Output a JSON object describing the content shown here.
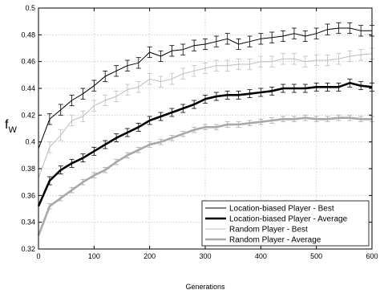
{
  "chart_data": {
    "type": "line",
    "title": "",
    "xlabel": "Generations",
    "ylabel": "f",
    "ylabel_sub": "W",
    "xlim": [
      0,
      600
    ],
    "ylim": [
      0.32,
      0.5
    ],
    "xticks": [
      0,
      100,
      200,
      300,
      400,
      500,
      600
    ],
    "yticks": [
      0.32,
      0.34,
      0.36,
      0.38,
      0.4,
      0.42,
      0.44,
      0.46,
      0.48,
      0.5
    ],
    "grid": true,
    "legend_position": "bottom-right",
    "x": [
      0,
      20,
      40,
      60,
      80,
      100,
      120,
      140,
      160,
      180,
      200,
      220,
      240,
      260,
      280,
      300,
      320,
      340,
      360,
      380,
      400,
      420,
      440,
      460,
      480,
      500,
      520,
      540,
      560,
      580,
      600
    ],
    "series": [
      {
        "name": "Location-biased Player - Best",
        "color": "#000000",
        "width": 1,
        "values": [
          0.395,
          0.417,
          0.424,
          0.431,
          0.436,
          0.442,
          0.449,
          0.453,
          0.457,
          0.459,
          0.467,
          0.464,
          0.468,
          0.469,
          0.472,
          0.473,
          0.475,
          0.477,
          0.473,
          0.475,
          0.477,
          0.478,
          0.479,
          0.481,
          0.479,
          0.481,
          0.484,
          0.485,
          0.485,
          0.483,
          0.483
        ],
        "error": 0.004
      },
      {
        "name": "Location-biased Player - Average",
        "color": "#000000",
        "width": 2.6,
        "values": [
          0.352,
          0.371,
          0.379,
          0.384,
          0.388,
          0.393,
          0.398,
          0.403,
          0.407,
          0.411,
          0.416,
          0.419,
          0.422,
          0.425,
          0.428,
          0.432,
          0.434,
          0.435,
          0.435,
          0.436,
          0.437,
          0.438,
          0.44,
          0.44,
          0.44,
          0.441,
          0.441,
          0.441,
          0.444,
          0.442,
          0.441
        ],
        "error": 0.003
      },
      {
        "name": "Random Player - Best",
        "color": "#bcbcbc",
        "width": 1,
        "values": [
          0.373,
          0.396,
          0.405,
          0.416,
          0.419,
          0.427,
          0.431,
          0.434,
          0.439,
          0.441,
          0.447,
          0.445,
          0.447,
          0.451,
          0.453,
          0.455,
          0.457,
          0.457,
          0.458,
          0.458,
          0.46,
          0.46,
          0.462,
          0.462,
          0.46,
          0.461,
          0.461,
          0.462,
          0.464,
          0.465,
          0.466
        ],
        "error": 0.004
      },
      {
        "name": "Random Player - Average",
        "color": "#a8a8a8",
        "width": 2.6,
        "values": [
          0.33,
          0.352,
          0.358,
          0.364,
          0.37,
          0.375,
          0.379,
          0.385,
          0.39,
          0.394,
          0.398,
          0.4,
          0.403,
          0.406,
          0.409,
          0.411,
          0.411,
          0.413,
          0.413,
          0.414,
          0.415,
          0.416,
          0.417,
          0.417,
          0.418,
          0.417,
          0.417,
          0.418,
          0.418,
          0.417,
          0.417
        ],
        "error": 0.002
      }
    ]
  }
}
